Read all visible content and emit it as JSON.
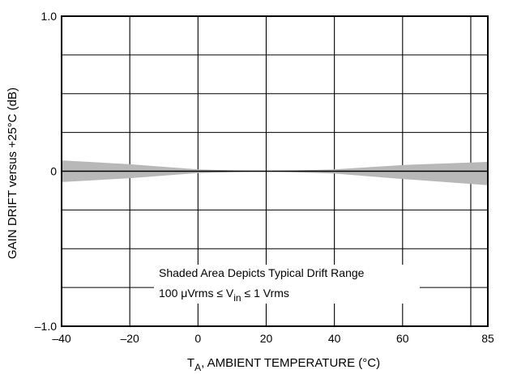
{
  "chart_data": {
    "type": "area",
    "title": "",
    "xlabel_main": "T",
    "xlabel_sub": "A",
    "xlabel_rest": ", AMBIENT TEMPERATURE (°C)",
    "ylabel": "GAIN DRIFT versus +25°C (dB)",
    "xlim": [
      -40,
      85
    ],
    "ylim": [
      -1.0,
      1.0
    ],
    "x_ticks": [
      -40,
      -20,
      0,
      20,
      40,
      60,
      85
    ],
    "x_tick_labels": [
      "–40",
      "–20",
      "0",
      "20",
      "40",
      "60",
      "85"
    ],
    "y_ticks": [
      -1.0,
      0,
      1.0
    ],
    "y_tick_labels": [
      "–1.0",
      "0",
      "1.0"
    ],
    "grid": true,
    "grid_x": [
      -40,
      -20,
      0,
      20,
      40,
      60,
      80,
      85
    ],
    "grid_y": [
      -1.0,
      -0.75,
      -0.5,
      -0.25,
      0,
      0.25,
      0.5,
      0.75,
      1.0
    ],
    "series": [
      {
        "type": "band",
        "color": "#b8b8b8",
        "x": [
          -40,
          -20,
          0,
          20,
          40,
          60,
          85
        ],
        "upper": [
          0.07,
          0.045,
          0.012,
          0.0,
          0.012,
          0.04,
          0.06
        ],
        "lower": [
          -0.07,
          -0.045,
          -0.012,
          0.0,
          -0.015,
          -0.05,
          -0.09
        ]
      },
      {
        "type": "line",
        "color": "#000000",
        "x": [
          -40,
          85
        ],
        "y": [
          0,
          0
        ]
      }
    ],
    "annotation": {
      "line1": "Shaded Area Depicts Typical Drift Range",
      "line2_pre": "100 μVrms ≤ V",
      "line2_sub": "in",
      "line2_post": " ≤ 1 Vrms"
    }
  }
}
